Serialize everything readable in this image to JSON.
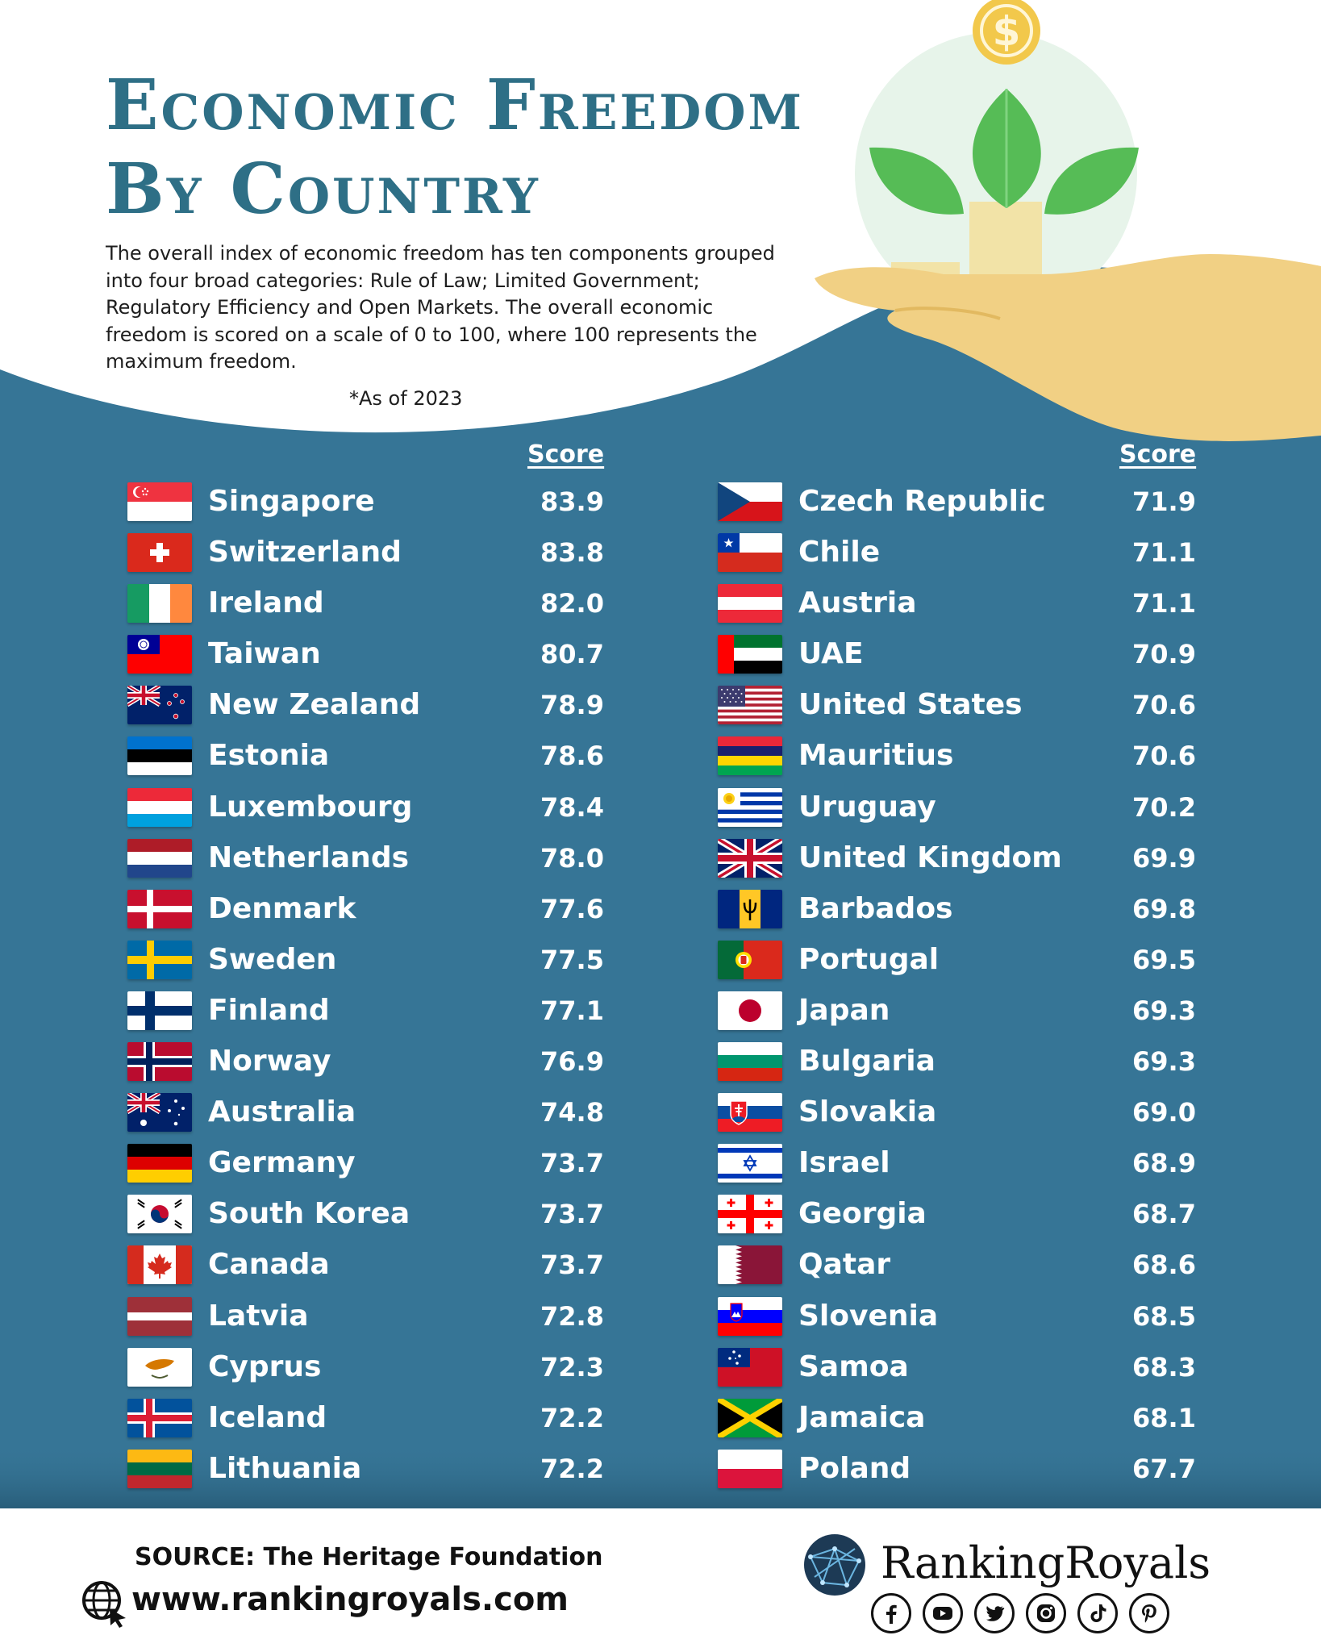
{
  "header": {
    "title_line1": "Economic Freedom",
    "title_line2": "By Country",
    "description": "The overall index of economic freedom has ten components grouped into four broad categories: Rule of Law; Limited Government; Regulatory Efficiency and Open Markets. The overall economic freedom is scored on a scale of 0 to 100, where 100 represents the maximum freedom.",
    "date_note": "*As of 2023"
  },
  "colors": {
    "background_blue": "#367596",
    "title_blue": "#2e6f86",
    "leaf_green": "#4fb44f",
    "hand_tan": "#f1d084",
    "coin_gold": "#f2c84b"
  },
  "chart_data": {
    "type": "table",
    "columns": [
      "Country",
      "Score"
    ],
    "left_column": [
      {
        "country": "Singapore",
        "score": "83.9",
        "flag": "singapore"
      },
      {
        "country": "Switzerland",
        "score": "83.8",
        "flag": "switzerland"
      },
      {
        "country": "Ireland",
        "score": "82.0",
        "flag": "ireland"
      },
      {
        "country": "Taiwan",
        "score": "80.7",
        "flag": "taiwan"
      },
      {
        "country": "New Zealand",
        "score": "78.9",
        "flag": "new-zealand"
      },
      {
        "country": "Estonia",
        "score": "78.6",
        "flag": "estonia"
      },
      {
        "country": "Luxembourg",
        "score": "78.4",
        "flag": "luxembourg"
      },
      {
        "country": "Netherlands",
        "score": "78.0",
        "flag": "netherlands"
      },
      {
        "country": "Denmark",
        "score": "77.6",
        "flag": "denmark"
      },
      {
        "country": "Sweden",
        "score": "77.5",
        "flag": "sweden"
      },
      {
        "country": "Finland",
        "score": "77.1",
        "flag": "finland"
      },
      {
        "country": "Norway",
        "score": "76.9",
        "flag": "norway"
      },
      {
        "country": "Australia",
        "score": "74.8",
        "flag": "australia"
      },
      {
        "country": "Germany",
        "score": "73.7",
        "flag": "germany"
      },
      {
        "country": "South Korea",
        "score": "73.7",
        "flag": "south-korea"
      },
      {
        "country": "Canada",
        "score": "73.7",
        "flag": "canada"
      },
      {
        "country": "Latvia",
        "score": "72.8",
        "flag": "latvia"
      },
      {
        "country": "Cyprus",
        "score": "72.3",
        "flag": "cyprus"
      },
      {
        "country": "Iceland",
        "score": "72.2",
        "flag": "iceland"
      },
      {
        "country": "Lithuania",
        "score": "72.2",
        "flag": "lithuania"
      }
    ],
    "right_column": [
      {
        "country": "Czech Republic",
        "score": "71.9",
        "flag": "czech-republic"
      },
      {
        "country": "Chile",
        "score": "71.1",
        "flag": "chile"
      },
      {
        "country": "Austria",
        "score": "71.1",
        "flag": "austria"
      },
      {
        "country": "UAE",
        "score": "70.9",
        "flag": "uae"
      },
      {
        "country": "United States",
        "score": "70.6",
        "flag": "united-states"
      },
      {
        "country": "Mauritius",
        "score": "70.6",
        "flag": "mauritius"
      },
      {
        "country": "Uruguay",
        "score": "70.2",
        "flag": "uruguay"
      },
      {
        "country": "United Kingdom",
        "score": "69.9",
        "flag": "united-kingdom"
      },
      {
        "country": "Barbados",
        "score": "69.8",
        "flag": "barbados"
      },
      {
        "country": "Portugal",
        "score": "69.5",
        "flag": "portugal"
      },
      {
        "country": "Japan",
        "score": "69.3",
        "flag": "japan"
      },
      {
        "country": "Bulgaria",
        "score": "69.3",
        "flag": "bulgaria"
      },
      {
        "country": "Slovakia",
        "score": "69.0",
        "flag": "slovakia"
      },
      {
        "country": "Israel",
        "score": "68.9",
        "flag": "israel"
      },
      {
        "country": "Georgia",
        "score": "68.7",
        "flag": "georgia"
      },
      {
        "country": "Qatar",
        "score": "68.6",
        "flag": "qatar"
      },
      {
        "country": "Slovenia",
        "score": "68.5",
        "flag": "slovenia"
      },
      {
        "country": "Samoa",
        "score": "68.3",
        "flag": "samoa"
      },
      {
        "country": "Jamaica",
        "score": "68.1",
        "flag": "jamaica"
      },
      {
        "country": "Poland",
        "score": "67.7",
        "flag": "poland"
      }
    ]
  },
  "table": {
    "score_header_left": "Score",
    "score_header_right": "Score"
  },
  "footer": {
    "source": "SOURCE: The Heritage Foundation",
    "website": "www.rankingroyals.com",
    "brand_name": "RankingRoyals",
    "social_icons": [
      "facebook-icon",
      "youtube-icon",
      "twitter-icon",
      "instagram-icon",
      "tiktok-icon",
      "pinterest-icon"
    ]
  }
}
